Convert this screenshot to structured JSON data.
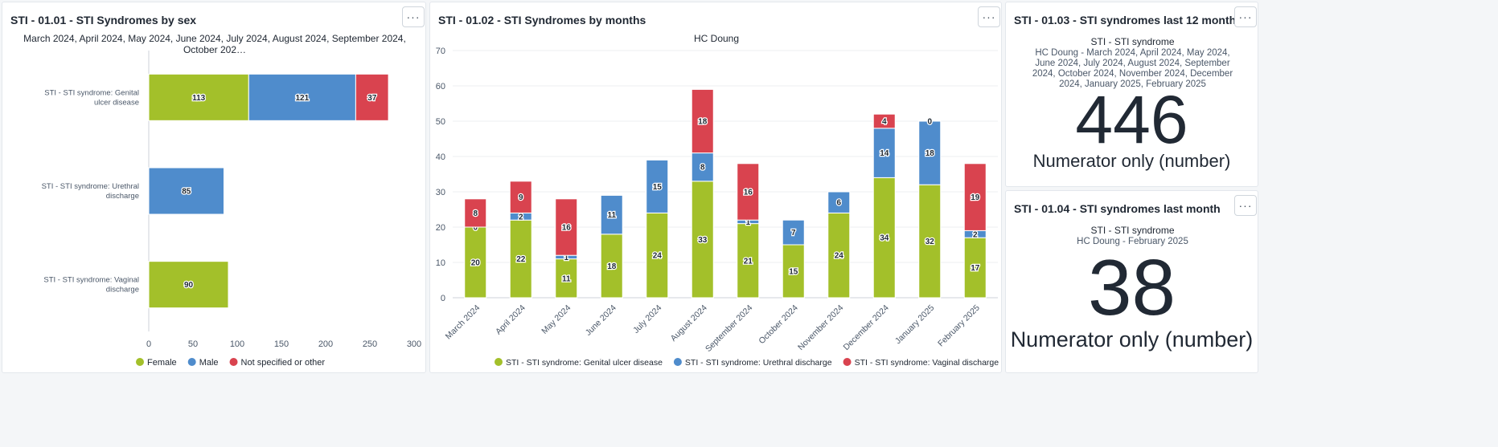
{
  "colors": {
    "female": "#a3c02a",
    "male": "#4f8ccc",
    "other": "#d9434f",
    "grid": "#eceff2",
    "axis": "#ccd1d8"
  },
  "menu_label": "···",
  "panel1": {
    "title": "STI - 01.01 - STI Syndromes by sex",
    "subtitle": "March 2024, April 2024, May 2024, June 2024, July 2024, August 2024, September 2024, October 202…"
  },
  "panel2": {
    "title": "STI - 01.02 - STI Syndromes by months",
    "subtitle": "HC Doung"
  },
  "panel3": {
    "title": "STI - 01.03 - STI syndromes last 12 months",
    "sv_title": "STI - STI syndrome",
    "sv_sub": "HC Doung - March 2024, April 2024, May 2024, June 2024, July 2024, August 2024, September 2024, October 2024, November 2024, December 2024, January 2025, February 2025",
    "value": "446",
    "caption": "Numerator only (number)"
  },
  "panel4": {
    "title": "STI - 01.04 - STI syndromes last month",
    "sv_title": "STI - STI syndrome",
    "sv_sub": "HC Doung - February 2025",
    "value": "38",
    "caption": "Numerator only (number)"
  },
  "chart_data": [
    {
      "type": "bar",
      "orientation": "horizontal",
      "stacked": true,
      "categories": [
        "STI - STI syndrome: Genital ulcer disease",
        "STI - STI syndrome: Urethral discharge",
        "STI - STI syndrome: Vaginal discharge"
      ],
      "series": [
        {
          "name": "Female",
          "color": "#a3c02a",
          "values": [
            113,
            null,
            90
          ]
        },
        {
          "name": "Male",
          "color": "#4f8ccc",
          "values": [
            121,
            85,
            null
          ]
        },
        {
          "name": "Not specified or other",
          "color": "#d9434f",
          "values": [
            37,
            null,
            null
          ]
        }
      ],
      "xlim": [
        0,
        300
      ],
      "ticks": [
        0,
        50,
        100,
        150,
        200,
        250,
        300
      ],
      "legend": "bottom"
    },
    {
      "type": "bar",
      "stacked": true,
      "categories": [
        "March 2024",
        "April 2024",
        "May 2024",
        "June 2024",
        "July 2024",
        "August 2024",
        "September 2024",
        "October 2024",
        "November 2024",
        "December 2024",
        "January 2025",
        "February 2025"
      ],
      "series": [
        {
          "name": "STI - STI syndrome: Genital ulcer disease",
          "color": "#a3c02a",
          "values": [
            20,
            22,
            11,
            18,
            24,
            33,
            21,
            15,
            24,
            34,
            32,
            17
          ]
        },
        {
          "name": "STI - STI syndrome: Urethral discharge",
          "color": "#4f8ccc",
          "values": [
            0,
            2,
            1,
            11,
            15,
            8,
            1,
            7,
            6,
            14,
            18,
            2
          ]
        },
        {
          "name": "STI - STI syndrome: Vaginal discharge",
          "color": "#d9434f",
          "values": [
            8,
            9,
            16,
            null,
            null,
            18,
            16,
            null,
            null,
            4,
            0,
            19
          ]
        }
      ],
      "ylim": [
        0,
        70
      ],
      "ticks": [
        0,
        10,
        20,
        30,
        40,
        50,
        60,
        70
      ],
      "grid": true,
      "legend": "bottom"
    }
  ]
}
